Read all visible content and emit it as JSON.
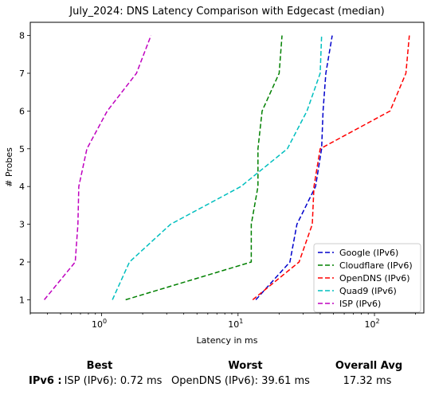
{
  "chart_data": {
    "type": "line",
    "title": "July_2024: DNS Latency Comparison with Edgecast (median)",
    "xlabel": "Latency in ms",
    "ylabel": "# Probes",
    "x_scale": "log",
    "xlim": [
      0.3,
      230
    ],
    "ylim": [
      0.65,
      8.35
    ],
    "x_ticks": [
      {
        "value": 1,
        "label": "10^0"
      },
      {
        "value": 10,
        "label": "10^1"
      },
      {
        "value": 100,
        "label": "10^2"
      }
    ],
    "y_ticks": [
      1,
      2,
      3,
      4,
      5,
      6,
      7,
      8
    ],
    "grid": false,
    "legend_position": "lower-right",
    "series": [
      {
        "name": "Google (IPv6)",
        "color": "#0000cc",
        "points": [
          [
            13.5,
            1
          ],
          [
            24,
            2
          ],
          [
            27,
            3
          ],
          [
            37,
            4
          ],
          [
            41,
            5
          ],
          [
            42,
            6
          ],
          [
            44,
            7
          ],
          [
            49,
            8
          ]
        ]
      },
      {
        "name": "Cloudflare (IPv6)",
        "color": "#008000",
        "points": [
          [
            1.5,
            1
          ],
          [
            12.5,
            2
          ],
          [
            12.5,
            3
          ],
          [
            14,
            4
          ],
          [
            14,
            5
          ],
          [
            15,
            6
          ],
          [
            20,
            7
          ],
          [
            21,
            8
          ]
        ]
      },
      {
        "name": "OpenDNS (IPv6)",
        "color": "#ff0000",
        "points": [
          [
            12.8,
            1
          ],
          [
            28,
            2
          ],
          [
            35,
            3
          ],
          [
            36,
            4
          ],
          [
            40,
            5
          ],
          [
            130,
            6
          ],
          [
            170,
            7
          ],
          [
            180,
            8
          ]
        ]
      },
      {
        "name": "Quad9 (IPv6)",
        "color": "#00bfbf",
        "points": [
          [
            1.2,
            1
          ],
          [
            1.6,
            2
          ],
          [
            3.2,
            3
          ],
          [
            10.5,
            4
          ],
          [
            23,
            5
          ],
          [
            32,
            6
          ],
          [
            40,
            7
          ],
          [
            41,
            8
          ]
        ]
      },
      {
        "name": "ISP (IPv6)",
        "color": "#bf00bf",
        "points": [
          [
            0.38,
            1
          ],
          [
            0.64,
            2
          ],
          [
            0.67,
            3
          ],
          [
            0.68,
            4
          ],
          [
            0.78,
            5
          ],
          [
            1.1,
            6
          ],
          [
            1.8,
            7
          ],
          [
            2.3,
            8
          ]
        ]
      }
    ]
  },
  "summary": {
    "headers": {
      "best": "Best",
      "worst": "Worst",
      "avg": "Overall Avg"
    },
    "row_label": "IPv6 :",
    "best": "ISP (IPv6): 0.72 ms",
    "worst": "OpenDNS (IPv6): 39.61 ms",
    "avg": "17.32 ms"
  }
}
